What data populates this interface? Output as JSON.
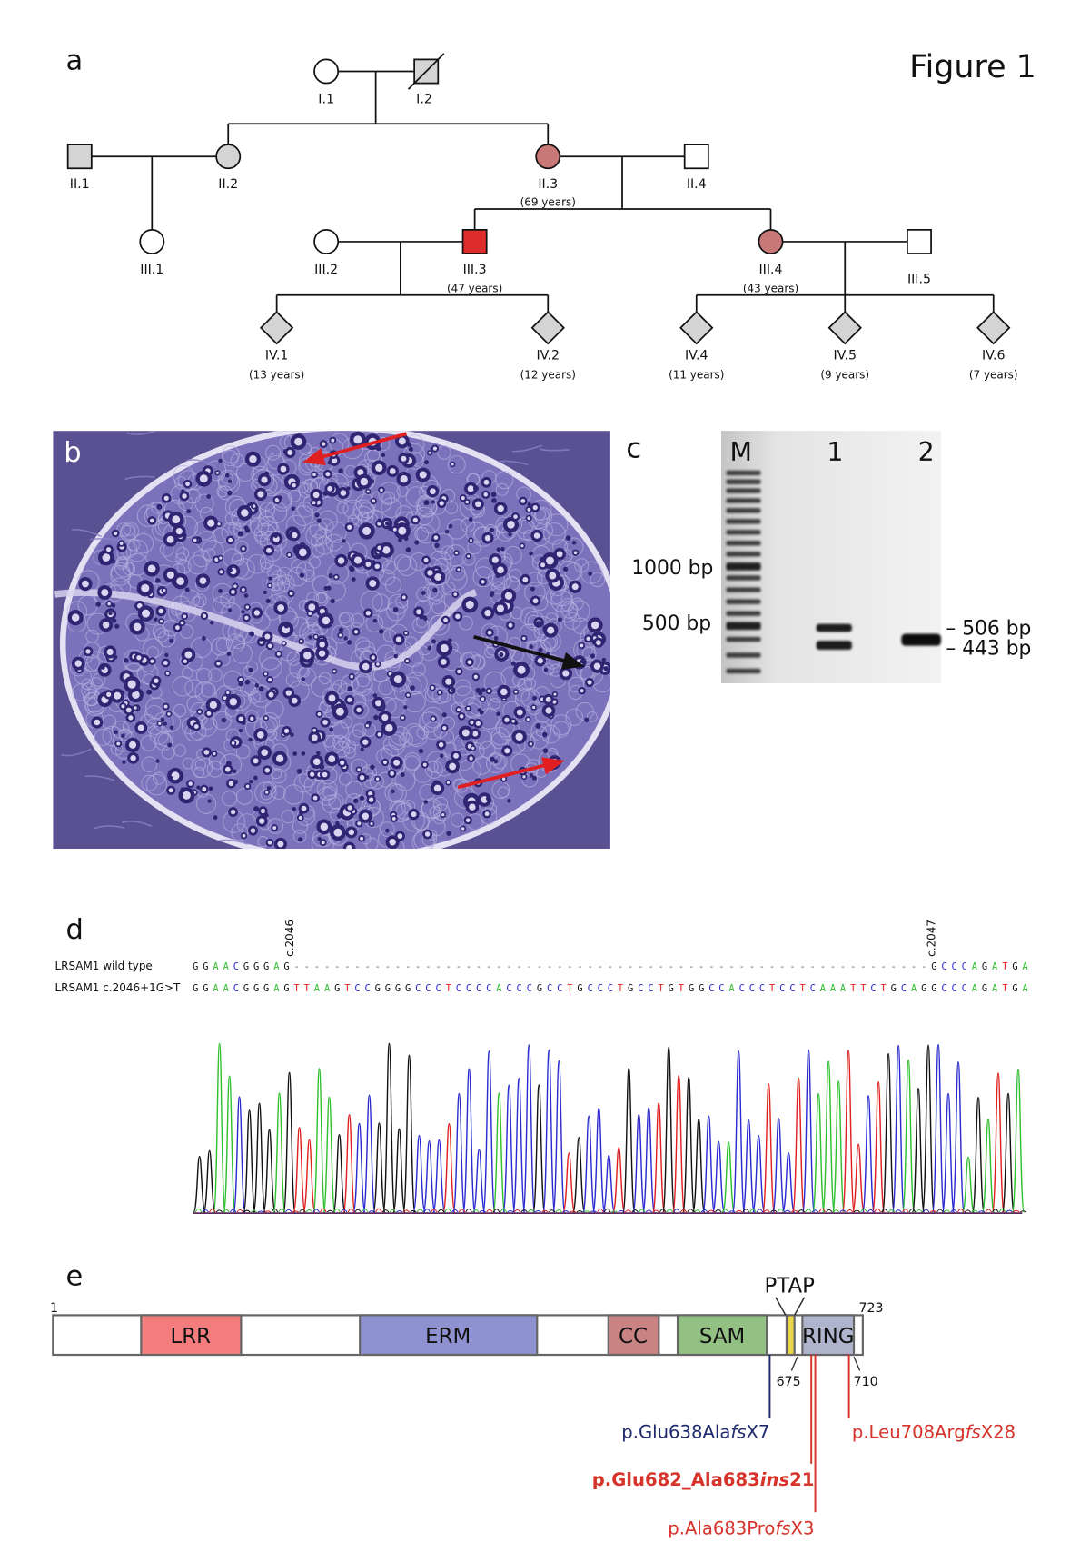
{
  "figure_title": "Figure 1",
  "panel_a": {
    "label": "a",
    "individuals": [
      {
        "id": "I.1",
        "fill": "#ffffff"
      },
      {
        "id": "I.2",
        "fill": "#d4d4d4"
      },
      {
        "id": "II.1",
        "fill": "#d4d4d4"
      },
      {
        "id": "II.2",
        "fill": "#d4d4d4"
      },
      {
        "id": "II.3",
        "fill": "#c97878",
        "age": "(69 years)"
      },
      {
        "id": "II.4",
        "fill": "#ffffff"
      },
      {
        "id": "III.1",
        "fill": "#ffffff"
      },
      {
        "id": "III.2",
        "fill": "#ffffff"
      },
      {
        "id": "III.3",
        "fill": "#de2b2b",
        "age": "(47 years)"
      },
      {
        "id": "III.4",
        "fill": "#c97878",
        "age": "(43 years)"
      },
      {
        "id": "III.5",
        "fill": "#ffffff"
      },
      {
        "id": "IV.1",
        "fill": "#d4d4d4",
        "age": "(13 years)"
      },
      {
        "id": "IV.2",
        "fill": "#d4d4d4",
        "age": "(12 years)"
      },
      {
        "id": "IV.4",
        "fill": "#d4d4d4",
        "age": "(11 years)"
      },
      {
        "id": "IV.5",
        "fill": "#d4d4d4",
        "age": "(9 years)"
      },
      {
        "id": "IV.6",
        "fill": "#d4d4d4",
        "age": "(7 years)"
      }
    ]
  },
  "panel_b": {
    "label": "b",
    "arrow_colors": {
      "red": "#e02020",
      "black": "#111111"
    }
  },
  "panel_c": {
    "label": "c",
    "lanes": [
      "M",
      "1",
      "2"
    ],
    "marker_labels": [
      "1000 bp",
      "500 bp"
    ],
    "band_labels": [
      "– 506 bp",
      "– 443 bp"
    ]
  },
  "panel_d": {
    "label": "d",
    "positions": [
      "c.2046",
      "c.2047"
    ],
    "rows": [
      {
        "name": "LRSAM1 wild type",
        "sequence": "GGAACGGGAG---------------------------------------------------------------GCCCAGATGA"
      },
      {
        "name": "LRSAM1 c.2046+1G>T",
        "sequence": "GGAACGGGAGTTAAGTCCGGGGCCCTCCCCACCCGCCTGCCCTGCCTGTGGCCACCCTCCTCAAATTCTGCAGGCCCAGATGA"
      }
    ],
    "base_colors": {
      "A": "#2fbf2f",
      "C": "#2a2ad0",
      "G": "#111111",
      "T": "#e02020",
      "-": "#666666"
    }
  },
  "panel_e": {
    "label": "e",
    "start": "1",
    "end": "723",
    "domains": [
      {
        "name": "LRR",
        "color": "#f47c7c"
      },
      {
        "name": "ERM",
        "color": "#8e92d1"
      },
      {
        "name": "CC",
        "color": "#c98383"
      },
      {
        "name": "SAM",
        "color": "#93c184"
      },
      {
        "name": "RING",
        "color": "#aeb4cc"
      }
    ],
    "motif": {
      "name": "PTAP",
      "color": "#e8d84a"
    },
    "residue_marks": [
      "675",
      "710"
    ],
    "mutations": [
      {
        "pre": "p.Glu638Ala",
        "ital": "fs",
        "post": "X7",
        "color": "#1f2a6e"
      },
      {
        "pre": "p.Glu682_Ala683",
        "ital": "ins",
        "post": "21",
        "color": "#d6332b"
      },
      {
        "pre": "p.Ala683Pro",
        "ital": "fs",
        "post": "X3",
        "color": "#d6332b"
      },
      {
        "pre": "p.Leu708Arg",
        "ital": "fs",
        "post": "X28",
        "color": "#d6332b"
      }
    ]
  }
}
